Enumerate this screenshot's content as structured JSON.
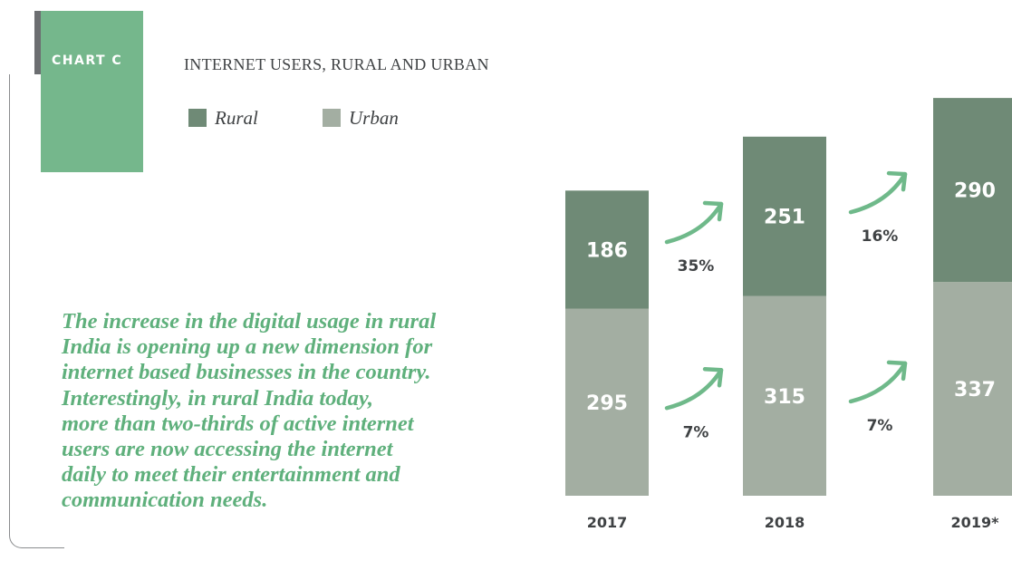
{
  "tag": "CHART C",
  "quote_lines": [
    "The increase in the digital usage in rural",
    "India is opening up a new dimension for",
    "internet based businesses in the country.",
    "Interestingly, in rural India today,",
    "more than two-thirds of active internet",
    "users are now accessing the internet",
    "daily to meet their entertainment and",
    "communication needs."
  ],
  "chart_data": {
    "type": "bar",
    "stacked": true,
    "title": "INTERNET USERS, RURAL AND URBAN",
    "categories": [
      "2017",
      "2018",
      "2019*"
    ],
    "series": [
      {
        "name": "Urban",
        "values": [
          295,
          315,
          337
        ],
        "color": "#a3aea2"
      },
      {
        "name": "Rural",
        "values": [
          186,
          251,
          290
        ],
        "color": "#6f8a76"
      }
    ],
    "growth": [
      {
        "series": "Rural",
        "from": "2017",
        "to": "2018",
        "label": "35%"
      },
      {
        "series": "Urban",
        "from": "2017",
        "to": "2018",
        "label": "7%"
      },
      {
        "series": "Rural",
        "from": "2018",
        "to": "2019*",
        "label": "16%"
      },
      {
        "series": "Urban",
        "from": "2018",
        "to": "2019*",
        "label": "7%"
      }
    ],
    "legend_position": "top-left",
    "grid": false,
    "arrow_color": "#6fb98a",
    "label_color": "#ffffff",
    "text_color": "#3f4244"
  }
}
